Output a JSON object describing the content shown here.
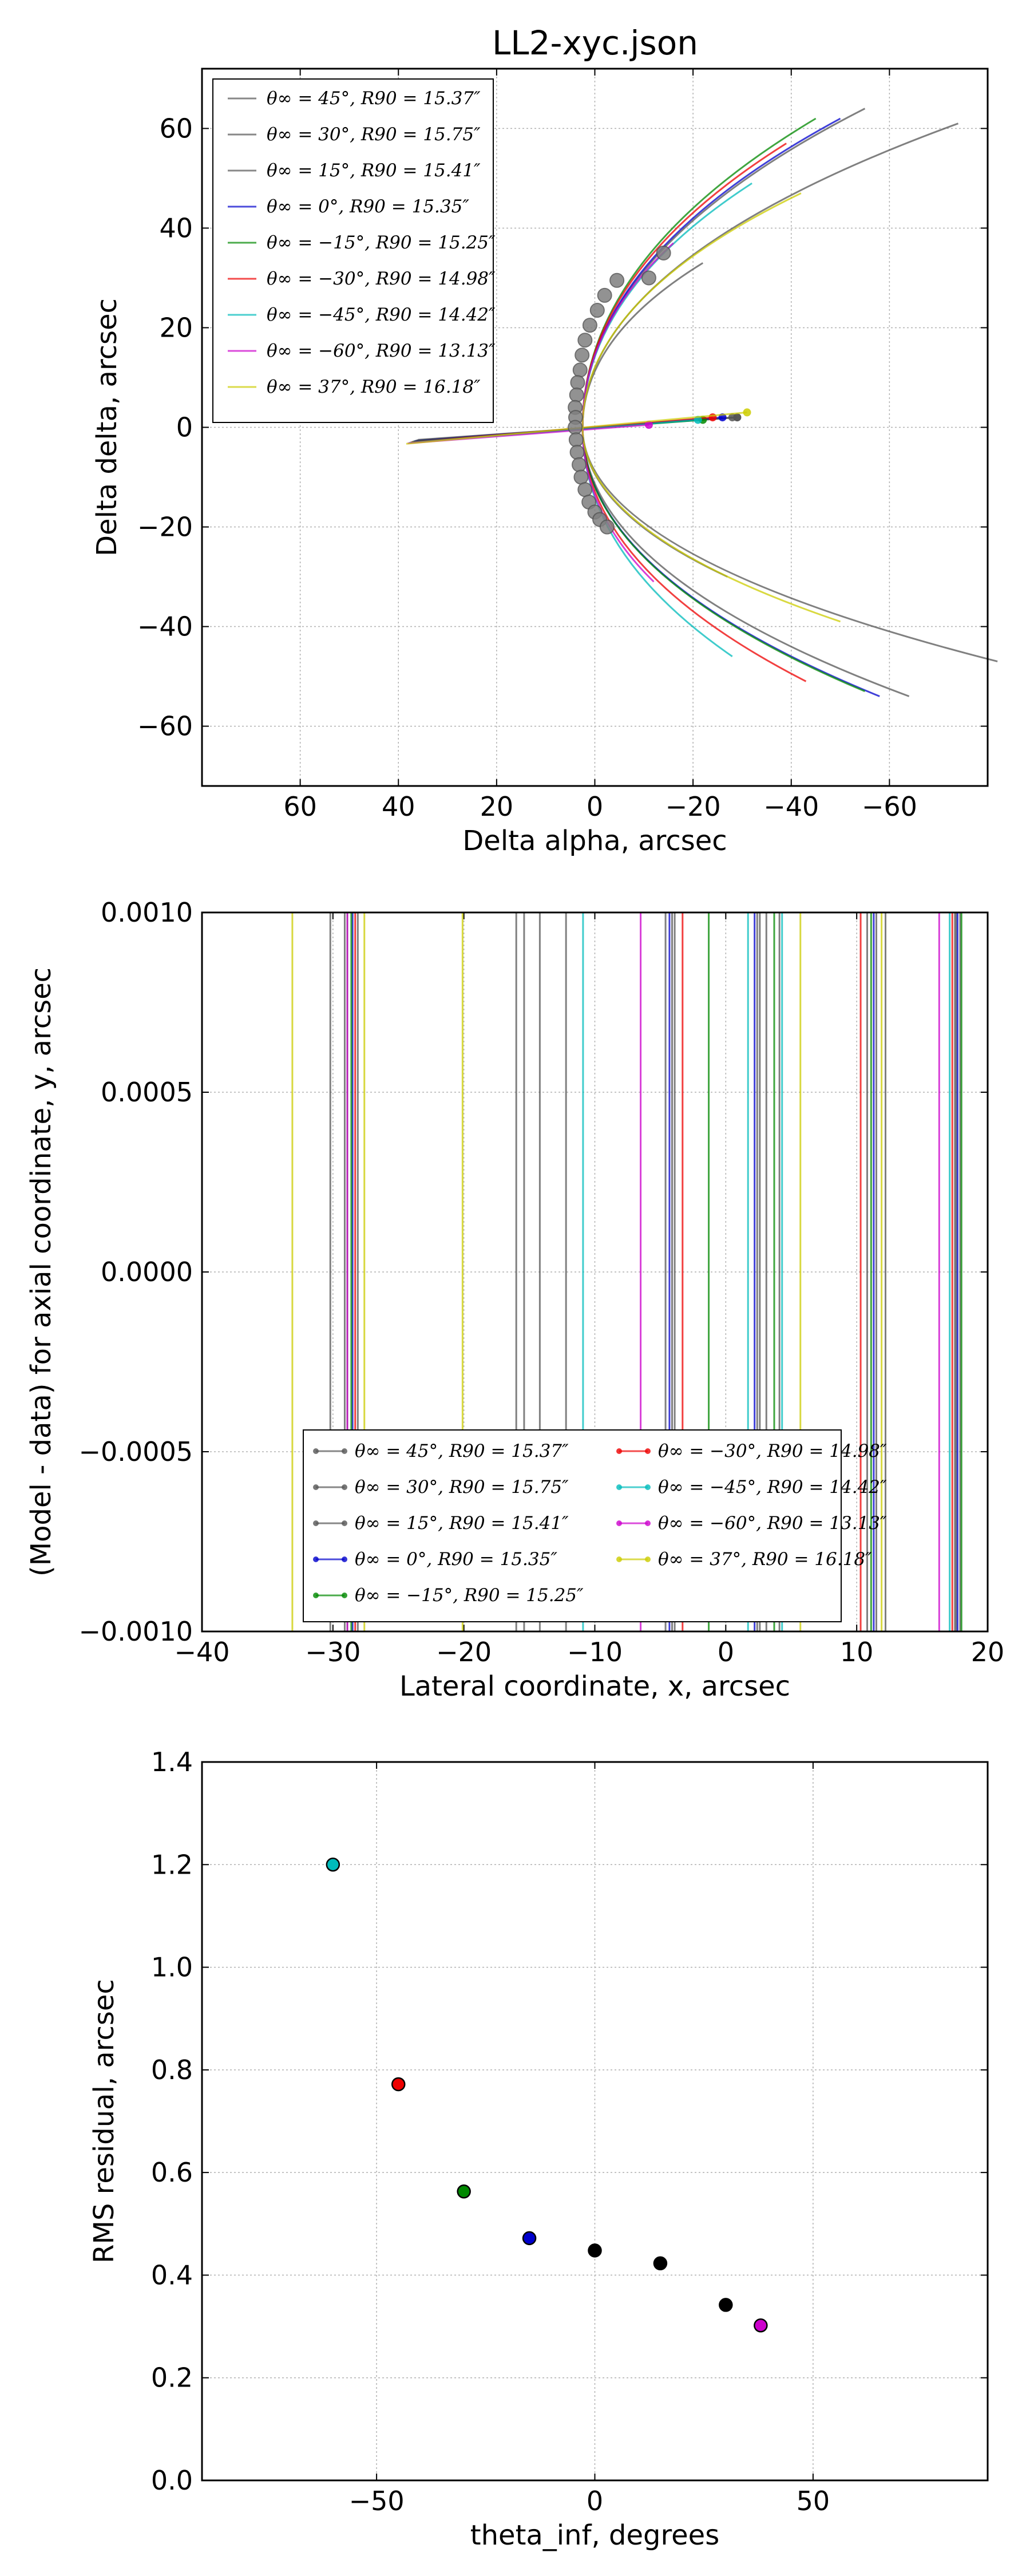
{
  "figure": {
    "title": "LL2-xyc.json"
  },
  "chart_data": [
    {
      "type": "line",
      "panel": "top",
      "xlabel": "Delta alpha, arcsec",
      "ylabel": "Delta delta, arcsec",
      "xlim": [
        80,
        -80
      ],
      "ylim": [
        -72,
        72
      ],
      "xticks": [
        60,
        40,
        20,
        0,
        -20,
        -40,
        -60
      ],
      "xtick_labels": [
        "60",
        "40",
        "20",
        "0",
        "−20",
        "−40",
        "−60"
      ],
      "yticks": [
        -60,
        -40,
        -20,
        0,
        20,
        40,
        60
      ],
      "ytick_labels": [
        "−60",
        "−40",
        "−20",
        "0",
        "20",
        "40",
        "60"
      ],
      "grid": true,
      "legend_position": "upper-left",
      "series": [
        {
          "name": "θ∞ = 45°, R90 = 15.37″",
          "color": "#555555",
          "theta_inf": 45,
          "R90": 15.37,
          "arm_top": [
            -22,
            33
          ],
          "arm_bottom": [
            -27,
            -30
          ],
          "center_point": [
            -29,
            2
          ]
        },
        {
          "name": "θ∞ = 30°, R90 = 15.75″",
          "color": "#555555",
          "theta_inf": 30,
          "R90": 15.75,
          "arm_top": [
            -74,
            61
          ],
          "arm_bottom": [
            -82,
            -47
          ],
          "center_point": [
            -29,
            2
          ]
        },
        {
          "name": "θ∞ = 15°, R90 = 15.41″",
          "color": "#555555",
          "theta_inf": 15,
          "R90": 15.41,
          "arm_top": [
            -55,
            64
          ],
          "arm_bottom": [
            -64,
            -54
          ],
          "center_point": [
            -28,
            2
          ]
        },
        {
          "name": "θ∞ = 0°, R90 = 15.35″",
          "color": "#0000cc",
          "theta_inf": 0,
          "R90": 15.35,
          "arm_top": [
            -50,
            62
          ],
          "arm_bottom": [
            -58,
            -54
          ],
          "center_point": [
            -26,
            2
          ]
        },
        {
          "name": "θ∞ = −15°, R90 = 15.25″",
          "color": "#008800",
          "theta_inf": -15,
          "R90": 15.25,
          "arm_top": [
            -45,
            62
          ],
          "arm_bottom": [
            -55,
            -53
          ],
          "center_point": [
            -22,
            1.5
          ]
        },
        {
          "name": "θ∞ = −30°, R90 = 14.98″",
          "color": "#ee0000",
          "theta_inf": -30,
          "R90": 14.98,
          "arm_top": [
            -39,
            57
          ],
          "arm_bottom": [
            -43,
            -51
          ],
          "center_point": [
            -24,
            2
          ]
        },
        {
          "name": "θ∞ = −45°, R90 = 14.42″",
          "color": "#00bbbb",
          "theta_inf": -45,
          "R90": 14.42,
          "arm_top": [
            -32,
            49
          ],
          "arm_bottom": [
            -28,
            -46
          ],
          "center_point": [
            -21,
            1.5
          ]
        },
        {
          "name": "θ∞ = −60°, R90 = 13.13″",
          "color": "#cc00cc",
          "theta_inf": -60,
          "R90": 13.13,
          "arm_top": [
            -16,
            37
          ],
          "arm_bottom": [
            -12,
            -31
          ],
          "center_point": [
            -11,
            0.5
          ]
        },
        {
          "name": "θ∞ = 37°, R90 = 16.18″",
          "color": "#cccc00",
          "theta_inf": 37,
          "R90": 16.18,
          "arm_top": [
            -42,
            47
          ],
          "arm_bottom": [
            -50,
            -39
          ],
          "center_point": [
            -31,
            3
          ]
        }
      ],
      "data_points": [
        [
          -4.5,
          29.5
        ],
        [
          -2,
          26.5
        ],
        [
          -0.5,
          23.5
        ],
        [
          1,
          20.5
        ],
        [
          2,
          17.5
        ],
        [
          2.6,
          14.5
        ],
        [
          3,
          11.5
        ],
        [
          3.5,
          9
        ],
        [
          3.7,
          6.5
        ],
        [
          4,
          4
        ],
        [
          3.9,
          2
        ],
        [
          4,
          0
        ],
        [
          3.8,
          -2.5
        ],
        [
          3.6,
          -5
        ],
        [
          3.2,
          -7.5
        ],
        [
          2.8,
          -10
        ],
        [
          2,
          -12.5
        ],
        [
          1.2,
          -15
        ],
        [
          0,
          -17
        ],
        [
          -1,
          -18.5
        ],
        [
          -2.5,
          -20
        ],
        [
          -11,
          30
        ],
        [
          -14,
          35
        ]
      ]
    },
    {
      "type": "line",
      "panel": "middle",
      "xlabel": "Lateral coordinate, x, arcsec",
      "ylabel": "(Model - data) for axial coordinate, y, arcsec",
      "xlim": [
        -40,
        20
      ],
      "ylim": [
        -0.001,
        0.001
      ],
      "xticks": [
        -40,
        -30,
        -20,
        -10,
        0,
        10,
        20
      ],
      "xtick_labels": [
        "−40",
        "−30",
        "−20",
        "−10",
        "0",
        "10",
        "20"
      ],
      "yticks": [
        -0.001,
        -0.0005,
        0,
        0.0005,
        0.001
      ],
      "ytick_labels": [
        "−0.0010",
        "−0.0005",
        "0.0000",
        "0.0005",
        "0.0010"
      ],
      "grid": true,
      "legend_position": "lower-center",
      "series": [
        {
          "name": "θ∞ = 45°, R90 = 15.37″",
          "color": "#555555",
          "x": [
            -30.2,
            -28.1,
            -16,
            -4.6,
            2.4,
            4.1,
            11.5,
            17.9
          ]
        },
        {
          "name": "θ∞ = 30°, R90 = 15.75″",
          "color": "#555555",
          "x": [
            -29.1,
            -15.4,
            -12.2,
            -3.9,
            3.1,
            12.2,
            17.5
          ]
        },
        {
          "name": "θ∞ = 15°, R90 = 15.41″",
          "color": "#555555",
          "x": [
            -28.9,
            -14.2,
            -4.1,
            2.6,
            10.8,
            17.6
          ]
        },
        {
          "name": "θ∞ = 0°, R90 = 15.35″",
          "color": "#0000cc",
          "x": [
            -28.5,
            -4.3,
            2.2,
            11.3,
            17.7
          ]
        },
        {
          "name": "θ∞ = −15°, R90 = 15.25″",
          "color": "#008800",
          "x": [
            -28.6,
            -1.3,
            3.7,
            11.1,
            18.0
          ]
        },
        {
          "name": "θ∞ = −30°, R90 = 14.98″",
          "color": "#ee0000",
          "x": [
            -28.3,
            -3.3,
            10.3,
            17.3
          ]
        },
        {
          "name": "θ∞ = −45°, R90 = 14.42″",
          "color": "#00bbbb",
          "x": [
            -10.9,
            1.7,
            4.3,
            17.1
          ]
        },
        {
          "name": "θ∞ = −60°, R90 = 13.13″",
          "color": "#cc00cc",
          "x": [
            -28.9,
            -6.5,
            16.3
          ]
        },
        {
          "name": "θ∞ = 37°, R90 = 16.18″",
          "color": "#cccc00",
          "x": [
            -33.1,
            -27.6,
            -20.1,
            5.7,
            11.9
          ]
        }
      ]
    },
    {
      "type": "scatter",
      "panel": "bottom",
      "xlabel": "theta_inf, degrees",
      "ylabel": "RMS residual, arcsec",
      "xlim": [
        -90,
        90
      ],
      "ylim": [
        0,
        1.4
      ],
      "xticks": [
        -50,
        0,
        50
      ],
      "xtick_labels": [
        "−50",
        "0",
        "50"
      ],
      "yticks": [
        0,
        0.2,
        0.4,
        0.6,
        0.8,
        1.0,
        1.2,
        1.4
      ],
      "ytick_labels": [
        "0.0",
        "0.2",
        "0.4",
        "0.6",
        "0.8",
        "1.0",
        "1.2",
        "1.4"
      ],
      "grid": true,
      "points": [
        {
          "x": -60,
          "y": 1.2,
          "color": "#00bbbb"
        },
        {
          "x": -45,
          "y": 0.772,
          "color": "#ee0000"
        },
        {
          "x": -30,
          "y": 0.563,
          "color": "#008800"
        },
        {
          "x": -15,
          "y": 0.472,
          "color": "#0000cc"
        },
        {
          "x": 0,
          "y": 0.448,
          "color": "#000000"
        },
        {
          "x": 15,
          "y": 0.423,
          "color": "#000000"
        },
        {
          "x": 30,
          "y": 0.342,
          "color": "#000000"
        },
        {
          "x": 38,
          "y": 0.302,
          "color": "#cc00cc"
        }
      ]
    }
  ]
}
